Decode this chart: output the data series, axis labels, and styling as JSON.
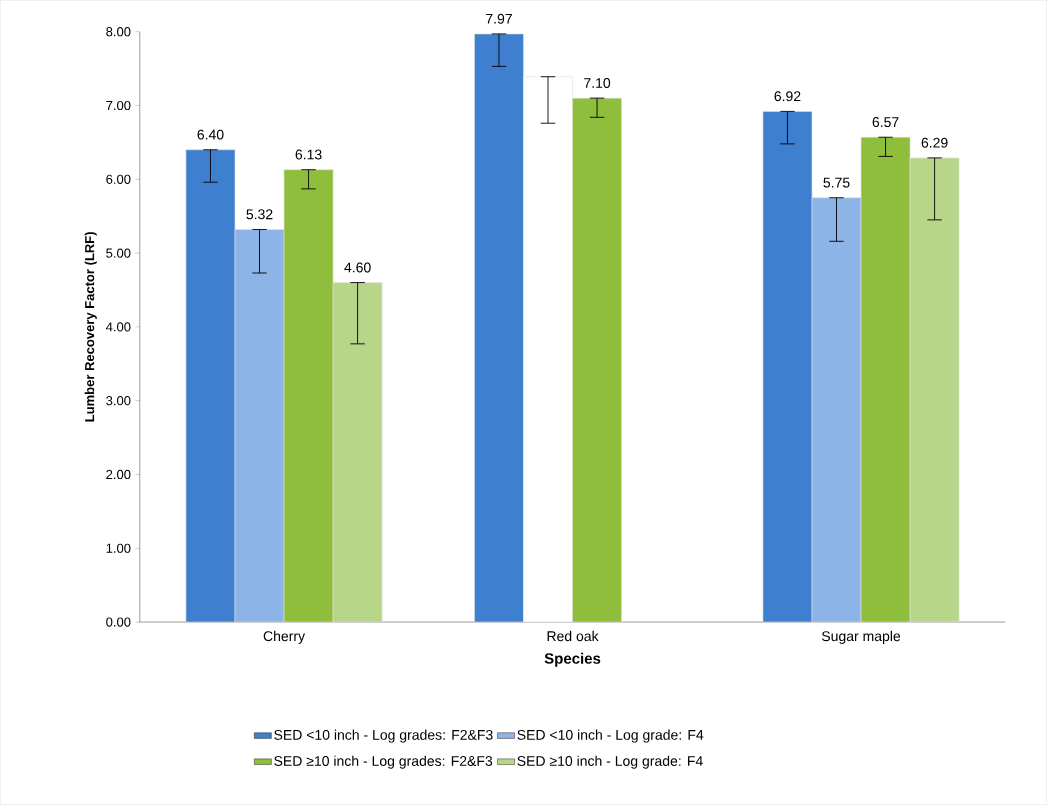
{
  "chart_data": {
    "type": "bar",
    "xlabel": "Species",
    "ylabel": "Lumber Recovery Factor (LRF)",
    "categories": [
      "Cherry",
      "Red oak",
      "Sugar maple"
    ],
    "series": [
      {
        "name": "SED <10 inch - Log grades: F2&F3",
        "color": "#3f7fcf",
        "values": [
          6.4,
          7.97,
          6.92
        ],
        "value_labels": [
          "6.40",
          "7.97",
          "6.92"
        ],
        "errors": [
          [
            5.96,
            6.4
          ],
          [
            7.53,
            7.97
          ],
          [
            6.48,
            6.92
          ]
        ]
      },
      {
        "name": "SED <10 inch - Log grade: F4",
        "color": "#8db4e6",
        "colors": [
          "#8db4e6",
          "#ffffff",
          "#8db4e6"
        ],
        "values": [
          5.32,
          7.39,
          5.75
        ],
        "value_labels": [
          "5.32",
          null,
          "5.75"
        ],
        "errors": [
          [
            4.73,
            5.32
          ],
          [
            6.76,
            7.39
          ],
          [
            5.16,
            5.75
          ]
        ]
      },
      {
        "name": "SED ≥10 inch - Log grades: F2&F3",
        "color": "#8fbd3c",
        "values": [
          6.13,
          7.1,
          6.57
        ],
        "value_labels": [
          "6.13",
          "7.10",
          "6.57"
        ],
        "errors": [
          [
            5.87,
            6.13
          ],
          [
            6.84,
            7.1
          ],
          [
            6.31,
            6.57
          ]
        ]
      },
      {
        "name": "SED ≥10 inch - Log grade: F4",
        "color": "#b8d68a",
        "values": [
          4.6,
          null,
          6.29
        ],
        "value_labels": [
          "4.60",
          null,
          "6.29"
        ],
        "errors": [
          [
            3.77,
            4.6
          ],
          null,
          [
            5.45,
            6.29
          ]
        ]
      }
    ],
    "ylim": [
      0,
      8
    ],
    "yticks": [
      {
        "value": 0,
        "label": "0.00"
      },
      {
        "value": 1,
        "label": "1.00"
      },
      {
        "value": 2,
        "label": "2.00"
      },
      {
        "value": 3,
        "label": "3.00"
      },
      {
        "value": 4,
        "label": "4.00"
      },
      {
        "value": 5,
        "label": "5.00"
      },
      {
        "value": 6,
        "label": "6.00"
      },
      {
        "value": 7,
        "label": "7.00"
      },
      {
        "value": 8,
        "label": "8.00"
      }
    ],
    "grid": false,
    "legend": "bottom"
  }
}
